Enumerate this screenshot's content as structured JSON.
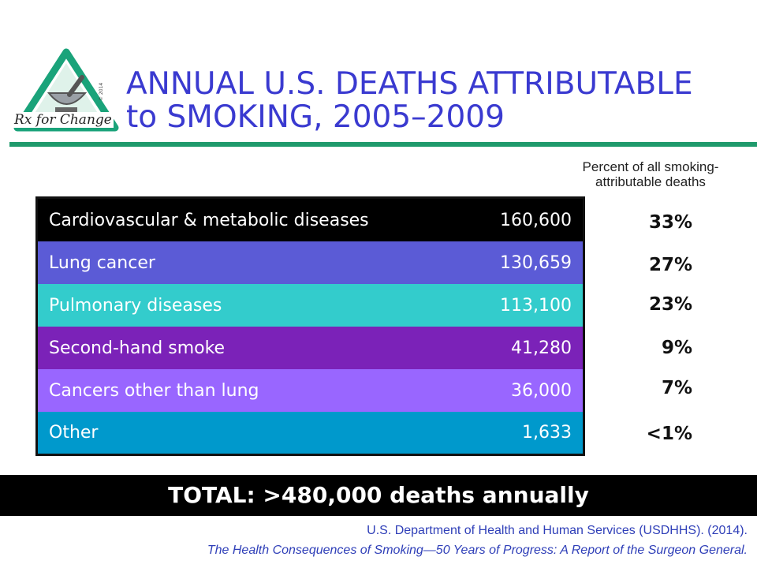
{
  "logo": {
    "text": "Rx for Change",
    "copyright": "© 2014",
    "colors": {
      "green": "#1aa37a",
      "gray": "#555555"
    }
  },
  "title": {
    "line1": "ANNUAL U.S. DEATHS ATTRIBUTABLE",
    "line2": "to SMOKING, 2005–2009"
  },
  "percent_header": {
    "line1": "Percent of all smoking-",
    "line2": "attributable deaths"
  },
  "rows": [
    {
      "label": "Cardiovascular & metabolic diseases",
      "value": "160,600",
      "percent": "33%",
      "color": "#000000"
    },
    {
      "label": "Lung cancer",
      "value": "130,659",
      "percent": "27%",
      "color": "#5b5bd6"
    },
    {
      "label": "Pulmonary diseases",
      "value": "113,100",
      "percent": "23%",
      "color": "#33cccc"
    },
    {
      "label": "Second-hand smoke",
      "value": "41,280",
      "percent": "9%",
      "color": "#7b22b8"
    },
    {
      "label": "Cancers other than lung",
      "value": "36,000",
      "percent": "7%",
      "color": "#9966ff"
    },
    {
      "label": "Other",
      "value": "1,633",
      "percent": "<1%",
      "color": "#0099cc"
    }
  ],
  "total": "TOTAL: >480,000 deaths annually",
  "citation": {
    "line1": "U.S. Department of Health and Human Services (USDHHS). (2014).",
    "line2": "The Health Consequences of Smoking—50 Years of Progress: A Report of the Surgeon General."
  }
}
